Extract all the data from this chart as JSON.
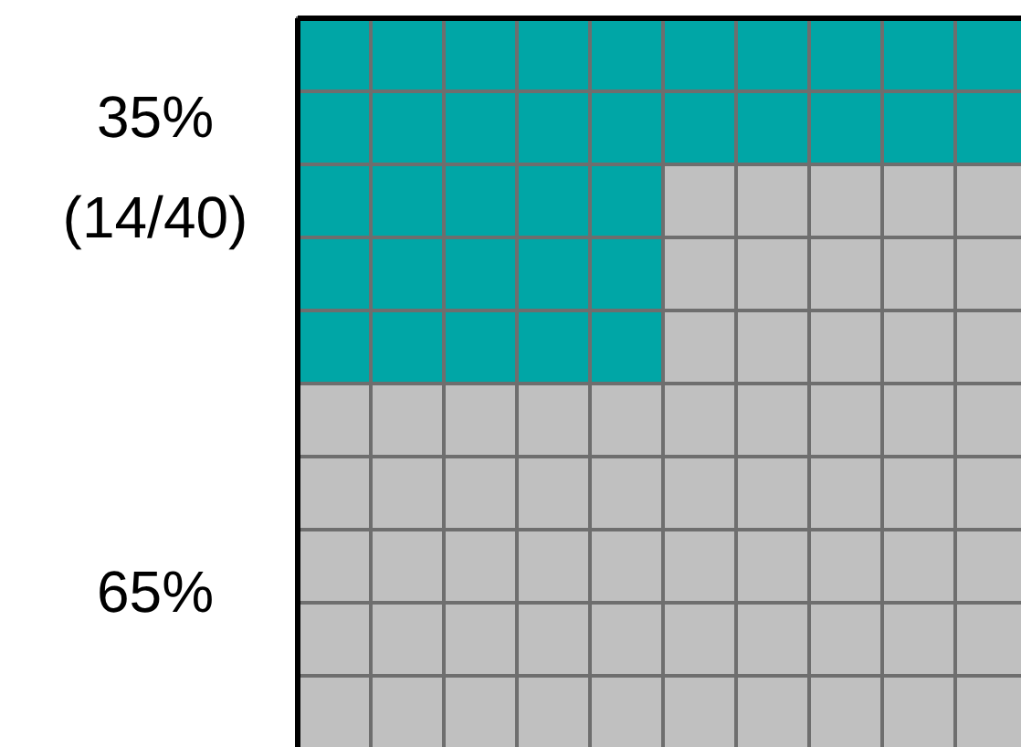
{
  "chart_data": {
    "type": "other",
    "categories": [
      null,
      null
    ],
    "values": [
      35,
      65
    ],
    "colors": [
      "#00a6a6",
      "#c0c0c0"
    ],
    "value_labels": [
      "35%\n(14/40)",
      "65%"
    ]
  }
}
